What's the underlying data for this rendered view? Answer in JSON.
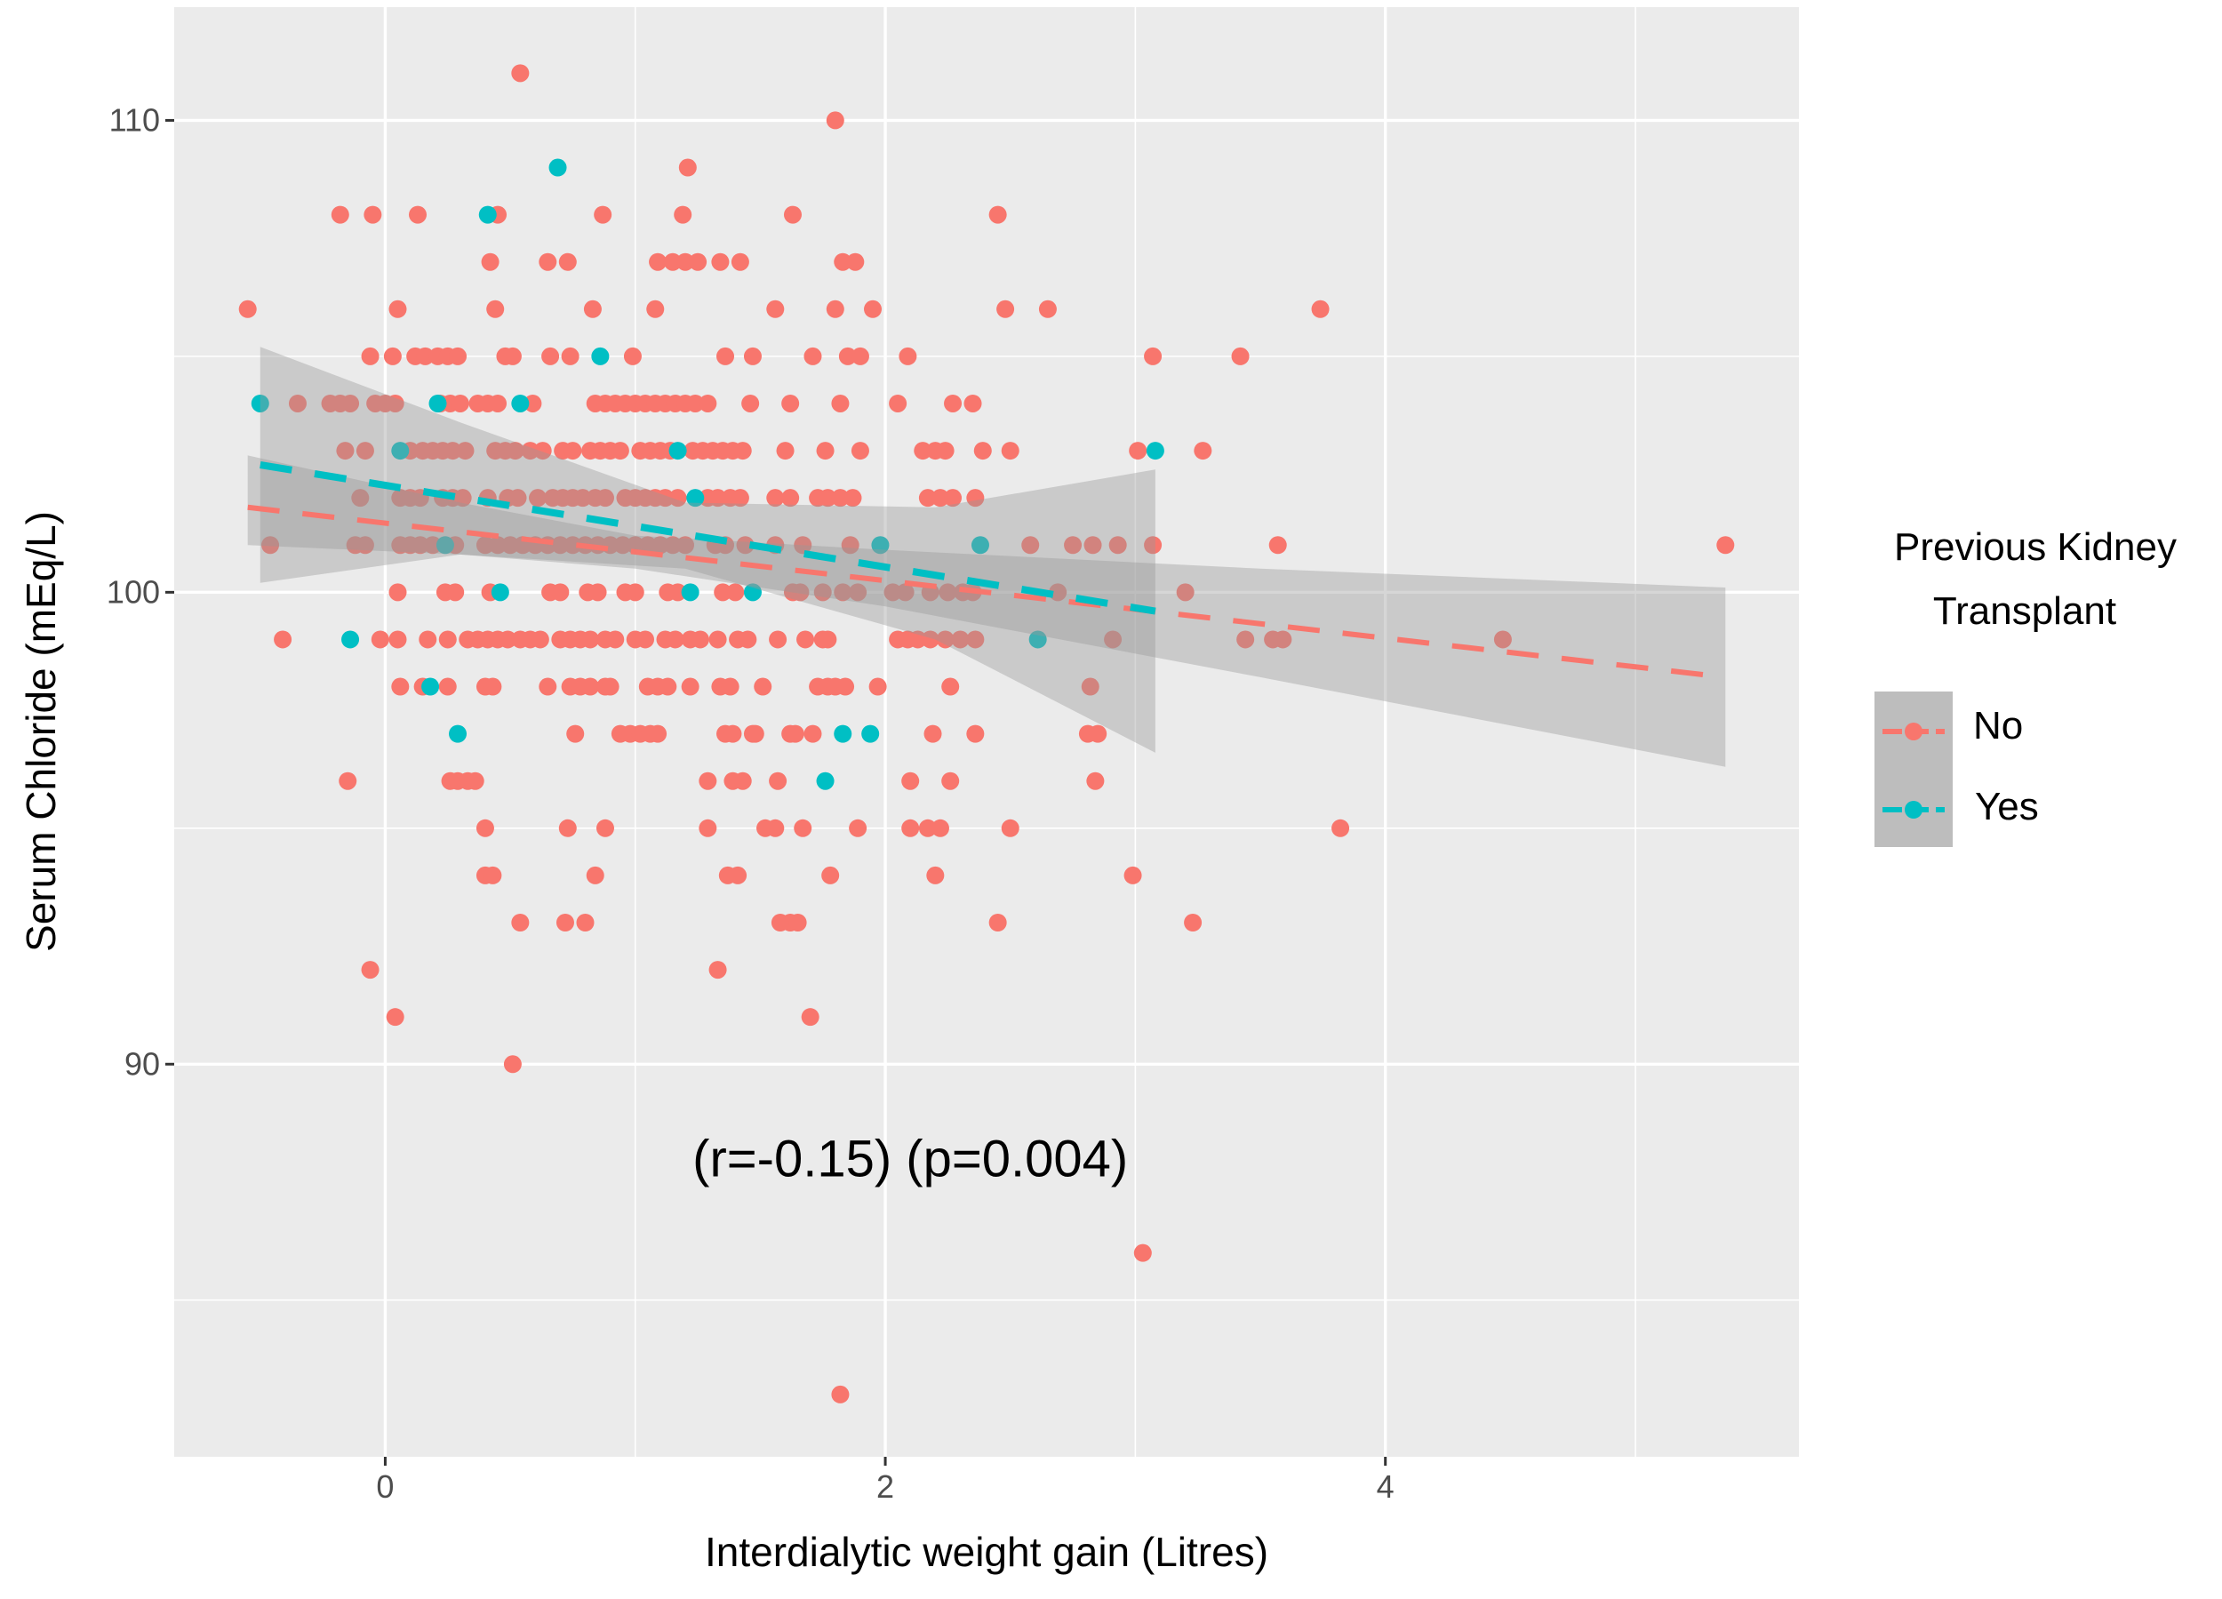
{
  "chart_data": {
    "type": "scatter",
    "xlabel": "Interdialytic weight gain (Litres)",
    "ylabel": "Serum Chloride (mEq/L)",
    "xlim": [
      -0.844,
      5.654
    ],
    "ylim": [
      81.68,
      112.4
    ],
    "x_ticks": [
      0,
      2,
      4
    ],
    "x_tick_labels": [
      "0",
      "2",
      "4"
    ],
    "x_minor": [
      1,
      3,
      5
    ],
    "y_ticks": [
      90,
      100,
      110
    ],
    "y_tick_labels": [
      "90",
      "100",
      "110"
    ],
    "y_minor": [
      85,
      95,
      105
    ],
    "grid": true,
    "annotation": {
      "text": "(r=-0.15) (p=0.004)",
      "x": 2.1,
      "y": 88
    },
    "legend": {
      "title_line1": "Previous Kidney",
      "title_line2": "Transplant",
      "placement": "right",
      "entries": [
        "No",
        "Yes"
      ]
    },
    "series": [
      {
        "name": "No",
        "color": "#F8766D",
        "rows": [
          {
            "y": 111,
            "x": [
              0.54
            ]
          },
          {
            "y": 110,
            "x": [
              1.8
            ]
          },
          {
            "y": 109,
            "x": [
              1.21
            ]
          },
          {
            "y": 108,
            "x": [
              -0.18,
              -0.05,
              0.13,
              0.45,
              0.87,
              1.19,
              1.63,
              2.45
            ]
          },
          {
            "y": 107,
            "x": [
              0.42,
              0.65,
              0.73,
              1.09,
              1.15,
              1.2,
              1.25,
              1.34,
              1.42,
              1.83,
              1.88
            ]
          },
          {
            "y": 106,
            "x": [
              -0.55,
              0.05,
              0.44,
              0.83,
              1.08,
              1.56,
              1.8,
              1.95,
              2.48,
              2.65,
              3.74
            ]
          },
          {
            "y": 105,
            "x": [
              -0.06,
              0.03,
              0.12,
              0.16,
              0.21,
              0.25,
              0.29,
              0.48,
              0.51,
              0.66,
              0.74,
              0.99,
              1.36,
              1.47,
              1.71,
              1.85,
              1.9,
              2.09,
              3.07,
              3.42
            ]
          },
          {
            "y": 104,
            "x": [
              -0.35,
              -0.22,
              -0.18,
              -0.14,
              -0.04,
              0,
              0.04,
              0.22,
              0.26,
              0.3,
              0.37,
              0.41,
              0.45,
              0.59,
              0.84,
              0.88,
              0.92,
              0.96,
              1.0,
              1.04,
              1.08,
              1.12,
              1.16,
              1.2,
              1.24,
              1.29,
              1.46,
              1.62,
              1.82,
              2.05,
              2.27,
              2.35
            ]
          },
          {
            "y": 103,
            "x": [
              -0.16,
              -0.08,
              0.1,
              0.15,
              0.19,
              0.23,
              0.27,
              0.32,
              0.44,
              0.48,
              0.52,
              0.58,
              0.63,
              0.71,
              0.75,
              0.82,
              0.86,
              0.9,
              0.94,
              1.02,
              1.06,
              1.1,
              1.14,
              1.23,
              1.27,
              1.31,
              1.35,
              1.39,
              1.43,
              1.6,
              1.76,
              1.9,
              2.15,
              2.2,
              2.24,
              2.39,
              2.5,
              3.01,
              3.27
            ]
          },
          {
            "y": 102,
            "x": [
              -0.1,
              0.06,
              0.1,
              0.14,
              0.23,
              0.27,
              0.31,
              0.41,
              0.49,
              0.53,
              0.61,
              0.67,
              0.71,
              0.75,
              0.79,
              0.84,
              0.88,
              0.96,
              1.0,
              1.04,
              1.08,
              1.12,
              1.17,
              1.29,
              1.33,
              1.38,
              1.42,
              1.56,
              1.62,
              1.73,
              1.77,
              1.82,
              1.87,
              2.17,
              2.22,
              2.27,
              2.36
            ]
          },
          {
            "y": 101,
            "x": [
              -0.46,
              -0.12,
              -0.08,
              0.06,
              0.1,
              0.14,
              0.19,
              0.28,
              0.4,
              0.45,
              0.5,
              0.55,
              0.6,
              0.65,
              0.7,
              0.75,
              0.8,
              0.85,
              0.9,
              0.95,
              1.0,
              1.05,
              1.1,
              1.15,
              1.2,
              1.32,
              1.36,
              1.44,
              1.56,
              1.67,
              1.86,
              2.58,
              2.75,
              2.83,
              2.93,
              3.07,
              3.57,
              5.36
            ]
          },
          {
            "y": 100,
            "x": [
              0.05,
              0.24,
              0.28,
              0.42,
              0.66,
              0.7,
              0.81,
              0.85,
              0.96,
              1.0,
              1.13,
              1.17,
              1.35,
              1.4,
              1.63,
              1.66,
              1.75,
              1.83,
              1.89,
              2.03,
              2.08,
              2.18,
              2.25,
              2.31,
              2.35,
              2.69,
              3.2
            ]
          },
          {
            "y": 99,
            "x": [
              -0.41,
              -0.02,
              0.05,
              0.17,
              0.25,
              0.33,
              0.37,
              0.41,
              0.45,
              0.49,
              0.54,
              0.58,
              0.62,
              0.7,
              0.74,
              0.78,
              0.82,
              0.88,
              0.92,
              1.0,
              1.04,
              1.12,
              1.16,
              1.22,
              1.26,
              1.33,
              1.41,
              1.45,
              1.57,
              1.68,
              1.75,
              1.77,
              2.05,
              2.09,
              2.13,
              2.18,
              2.24,
              2.3,
              2.36,
              2.91,
              3.44,
              3.55,
              3.59,
              4.47
            ]
          },
          {
            "y": 98,
            "x": [
              0.06,
              0.15,
              0.25,
              0.4,
              0.43,
              0.65,
              0.74,
              0.78,
              0.82,
              0.88,
              0.9,
              1.05,
              1.09,
              1.13,
              1.22,
              1.34,
              1.38,
              1.51,
              1.73,
              1.77,
              1.8,
              1.84,
              1.97,
              2.26,
              2.82
            ]
          },
          {
            "y": 97,
            "x": [
              0.76,
              0.94,
              0.98,
              1.02,
              1.06,
              1.09,
              1.36,
              1.39,
              1.47,
              1.48,
              1.62,
              1.64,
              1.71,
              2.19,
              2.36,
              2.81,
              2.85
            ]
          },
          {
            "y": 96,
            "x": [
              -0.15,
              0.26,
              0.29,
              0.33,
              0.36,
              1.29,
              1.39,
              1.43,
              1.57,
              2.1,
              2.26,
              2.84
            ]
          },
          {
            "y": 95,
            "x": [
              0.4,
              0.73,
              0.88,
              1.29,
              1.52,
              1.56,
              1.67,
              1.89,
              2.1,
              2.17,
              2.22,
              2.5,
              3.82
            ]
          },
          {
            "y": 94,
            "x": [
              0.4,
              0.43,
              0.84,
              1.37,
              1.41,
              1.78,
              2.2,
              2.99
            ]
          },
          {
            "y": 93,
            "x": [
              0.54,
              0.72,
              0.8,
              1.58,
              1.62,
              1.65,
              2.45,
              3.23
            ]
          },
          {
            "y": 92,
            "x": [
              -0.06,
              1.33
            ]
          },
          {
            "y": 91,
            "x": [
              0.04,
              1.7
            ]
          },
          {
            "y": 90,
            "x": [
              0.51
            ]
          },
          {
            "y": 86,
            "x": [
              3.03
            ]
          },
          {
            "y": 83,
            "x": [
              1.82
            ]
          }
        ],
        "fit": {
          "x": [
            -0.55,
            5.36
          ],
          "y": [
            101.8,
            98.2
          ]
        },
        "ci": {
          "x": [
            -0.55,
            0.3,
            1.0,
            2.0,
            3.5,
            5.36
          ],
          "upper": [
            102.9,
            101.9,
            101.2,
            100.9,
            100.5,
            100.1
          ],
          "lower": [
            101.0,
            100.8,
            100.5,
            99.7,
            98.2,
            96.3
          ]
        }
      },
      {
        "name": "Yes",
        "color": "#00BFC4",
        "rows": [
          {
            "y": 109,
            "x": [
              0.69
            ]
          },
          {
            "y": 108,
            "x": [
              0.41
            ]
          },
          {
            "y": 105,
            "x": [
              0.86
            ]
          },
          {
            "y": 104,
            "x": [
              -0.5,
              0.21,
              0.54
            ]
          },
          {
            "y": 103,
            "x": [
              0.06,
              1.17,
              3.08
            ]
          },
          {
            "y": 102,
            "x": [
              1.24
            ]
          },
          {
            "y": 101,
            "x": [
              0.24,
              1.98,
              2.38
            ]
          },
          {
            "y": 100,
            "x": [
              0.46,
              1.22,
              1.47
            ]
          },
          {
            "y": 99,
            "x": [
              -0.14,
              2.61
            ]
          },
          {
            "y": 98,
            "x": [
              0.18
            ]
          },
          {
            "y": 97,
            "x": [
              0.29,
              1.83,
              1.94
            ]
          },
          {
            "y": 96,
            "x": [
              1.76
            ]
          }
        ],
        "fit": {
          "x": [
            -0.5,
            3.08
          ],
          "y": [
            102.7,
            99.6
          ]
        },
        "ci": {
          "x": [
            -0.5,
            0.3,
            1.2,
            2.2,
            3.08
          ],
          "upper": [
            105.2,
            103.6,
            101.9,
            101.8,
            102.6
          ],
          "lower": [
            100.2,
            100.8,
            100.5,
            99.0,
            96.6
          ]
        }
      }
    ]
  }
}
